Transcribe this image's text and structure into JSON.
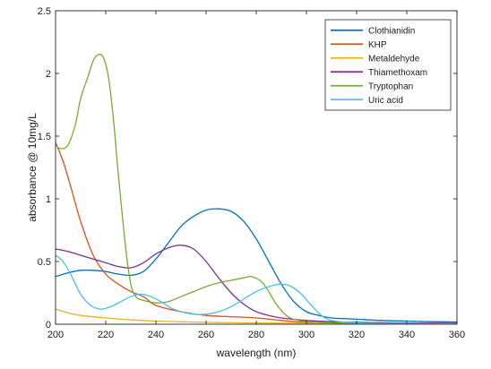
{
  "chart_data": {
    "type": "line",
    "title": "",
    "xlabel": "wavelength (nm)",
    "ylabel": "absorbance @ 10mg/L",
    "xlim": [
      200,
      360
    ],
    "ylim": [
      0,
      2.5
    ],
    "xticks": [
      200,
      220,
      240,
      260,
      280,
      300,
      320,
      340,
      360
    ],
    "yticks": [
      0,
      0.5,
      1,
      1.5,
      2,
      2.5
    ],
    "xtick_labels": [
      "200",
      "220",
      "240",
      "260",
      "280",
      "300",
      "320",
      "340",
      "360"
    ],
    "ytick_labels": [
      "0",
      "0.5",
      "1",
      "1.5",
      "2",
      "2.5"
    ],
    "grid": false,
    "legend_position": "top-right",
    "series": [
      {
        "name": "Clothianidin",
        "color": "#0072BD",
        "x": [
          200,
          205,
          210,
          215,
          220,
          225,
          230,
          235,
          240,
          245,
          250,
          255,
          260,
          265,
          270,
          275,
          280,
          285,
          290,
          295,
          300,
          305,
          310,
          315,
          320,
          330,
          340,
          350,
          360
        ],
        "y": [
          0.38,
          0.41,
          0.43,
          0.43,
          0.42,
          0.4,
          0.39,
          0.42,
          0.52,
          0.65,
          0.78,
          0.86,
          0.91,
          0.92,
          0.9,
          0.82,
          0.68,
          0.5,
          0.32,
          0.18,
          0.1,
          0.07,
          0.05,
          0.045,
          0.04,
          0.03,
          0.025,
          0.02,
          0.018
        ]
      },
      {
        "name": "KHP",
        "color": "#D95319",
        "x": [
          200,
          203,
          206,
          210,
          215,
          220,
          225,
          230,
          235,
          240,
          250,
          260,
          270,
          280,
          290,
          300,
          320,
          340,
          360
        ],
        "y": [
          1.45,
          1.3,
          1.1,
          0.82,
          0.55,
          0.4,
          0.32,
          0.26,
          0.22,
          0.15,
          0.1,
          0.07,
          0.06,
          0.05,
          0.03,
          0.015,
          0.01,
          0.01,
          0.01
        ]
      },
      {
        "name": "Metaldehyde",
        "color": "#EDB120",
        "x": [
          200,
          205,
          210,
          220,
          230,
          240,
          260,
          280,
          300,
          320,
          340,
          360
        ],
        "y": [
          0.12,
          0.09,
          0.07,
          0.05,
          0.035,
          0.025,
          0.015,
          0.01,
          0.008,
          0.005,
          0.005,
          0.005
        ]
      },
      {
        "name": "Thiamethoxam",
        "color": "#7E2F8E",
        "x": [
          200,
          205,
          210,
          215,
          220,
          225,
          230,
          235,
          240,
          245,
          250,
          255,
          260,
          265,
          270,
          275,
          280,
          285,
          290,
          300,
          310,
          320,
          340,
          360
        ],
        "y": [
          0.6,
          0.58,
          0.55,
          0.52,
          0.49,
          0.46,
          0.45,
          0.49,
          0.56,
          0.61,
          0.63,
          0.6,
          0.5,
          0.37,
          0.25,
          0.16,
          0.1,
          0.07,
          0.05,
          0.03,
          0.02,
          0.015,
          0.01,
          0.01
        ]
      },
      {
        "name": "Tryptophan",
        "color": "#77AC30",
        "x": [
          200,
          202,
          205,
          208,
          210,
          213,
          215,
          217,
          219,
          221,
          223,
          225,
          228,
          230,
          232,
          235,
          240,
          245,
          250,
          255,
          260,
          265,
          270,
          275,
          278,
          282,
          285,
          288,
          292,
          295,
          300,
          310,
          320,
          340,
          360
        ],
        "y": [
          1.43,
          1.4,
          1.43,
          1.6,
          1.8,
          1.98,
          2.1,
          2.15,
          2.13,
          1.98,
          1.65,
          1.2,
          0.6,
          0.32,
          0.22,
          0.19,
          0.17,
          0.18,
          0.22,
          0.26,
          0.3,
          0.33,
          0.35,
          0.37,
          0.38,
          0.34,
          0.26,
          0.16,
          0.07,
          0.04,
          0.02,
          0.01,
          0.008,
          0.005,
          0.005
        ]
      },
      {
        "name": "Uric acid",
        "color": "#4DBEEE",
        "x": [
          200,
          203,
          206,
          210,
          214,
          218,
          222,
          226,
          230,
          234,
          238,
          242,
          246,
          250,
          255,
          260,
          265,
          270,
          275,
          280,
          285,
          290,
          294,
          298,
          302,
          306,
          310,
          320,
          340,
          360
        ],
        "y": [
          0.55,
          0.5,
          0.4,
          0.24,
          0.15,
          0.12,
          0.14,
          0.18,
          0.22,
          0.24,
          0.22,
          0.18,
          0.13,
          0.1,
          0.08,
          0.08,
          0.1,
          0.14,
          0.2,
          0.26,
          0.3,
          0.32,
          0.3,
          0.24,
          0.15,
          0.07,
          0.03,
          0.01,
          0.005,
          0.005
        ]
      }
    ]
  }
}
